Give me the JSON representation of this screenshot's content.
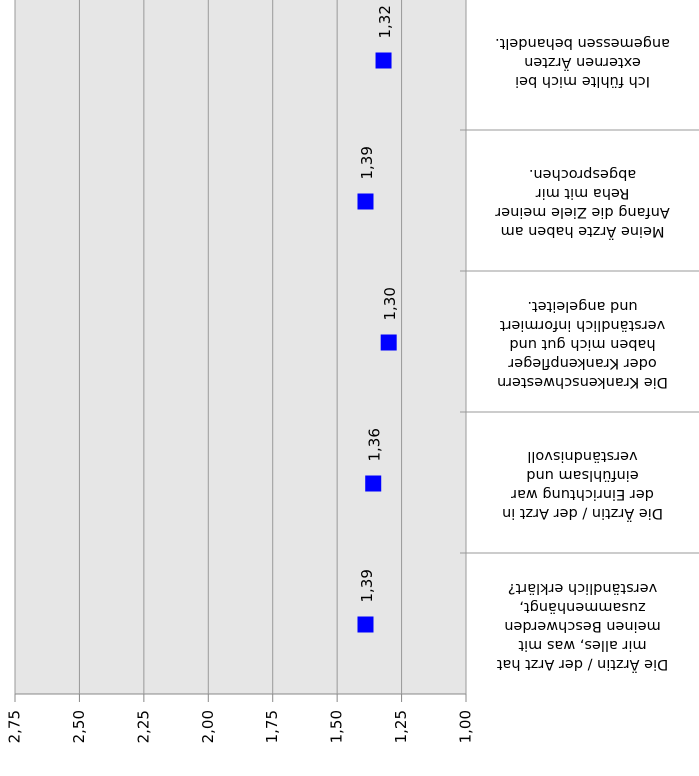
{
  "chart_data": {
    "type": "dot",
    "categories": [
      "Die Ärztin / der Arzt hat\nmir alles, was mit\nmeinen Beschwerden\nzusammenhängt,\nverständlich erklärt?",
      "Die Ärztin / der Arzt in\nder Einrichtung war\neinfühlsam und\nverständnisvoll",
      "Die Krankenschwestern\noder Krankenpfleger\nhaben mich gut und\nverständlich informiert\nund angeleitet.",
      "Meine Ärzte haben am\nAnfang die Ziele meiner\nReha mit mir\nabgesprochen.",
      "Ich fühlte mich bei\nexternen Ärzten\nangemessen behandelt."
    ],
    "values": [
      1.39,
      1.36,
      1.3,
      1.39,
      1.32
    ],
    "value_labels": [
      "1,39",
      "1,36",
      "1,30",
      "1,39",
      "1,32"
    ],
    "color": "#0000ff",
    "xlim": [
      2.75,
      1.0
    ],
    "xticks": [
      {
        "value": 2.75,
        "label": "2,75"
      },
      {
        "value": 2.5,
        "label": "2,50"
      },
      {
        "value": 2.25,
        "label": "2,25"
      },
      {
        "value": 2.0,
        "label": "2,00"
      },
      {
        "value": 1.75,
        "label": "1,75"
      },
      {
        "value": 1.5,
        "label": "1,50"
      },
      {
        "value": 1.25,
        "label": "1,25"
      },
      {
        "value": 1.0,
        "label": "1,00"
      }
    ],
    "grid": true
  }
}
